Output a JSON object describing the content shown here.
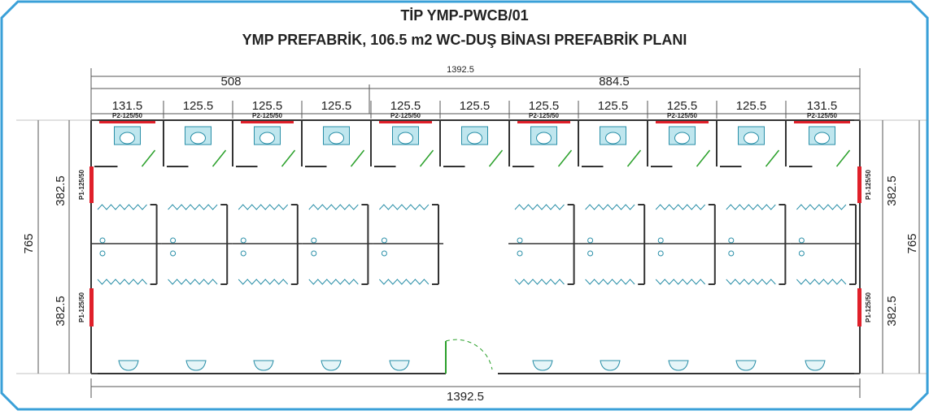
{
  "header": {
    "title": "TİP YMP-PWCB/01",
    "subtitle": "YMP PREFABRİK, 106.5 m2 WC-DUŞ BİNASI PREFABRİK  PLANI"
  },
  "dimensions": {
    "top_total": "1392.5",
    "left_part": "508",
    "right_part": "884.5",
    "modules": [
      "131.5",
      "125.5",
      "125.5",
      "125.5",
      "125.5",
      "125.5",
      "125.5",
      "125.5",
      "125.5",
      "125.5",
      "131.5"
    ],
    "bottom_total": "1392.5",
    "left_total": "765",
    "left_upper": "382.5",
    "left_lower": "382.5",
    "right_total": "765",
    "right_upper": "382.5",
    "right_lower": "382.5"
  },
  "windows": {
    "top": [
      "P2-125/50",
      "P2-125/50",
      "P2-125/50",
      "P2-125/50",
      "P2-125/50",
      "P2-125/50"
    ],
    "left": [
      "P1-125/50",
      "P1-125/50"
    ],
    "right": [
      "P1-125/50",
      "P1-125/50"
    ]
  }
}
